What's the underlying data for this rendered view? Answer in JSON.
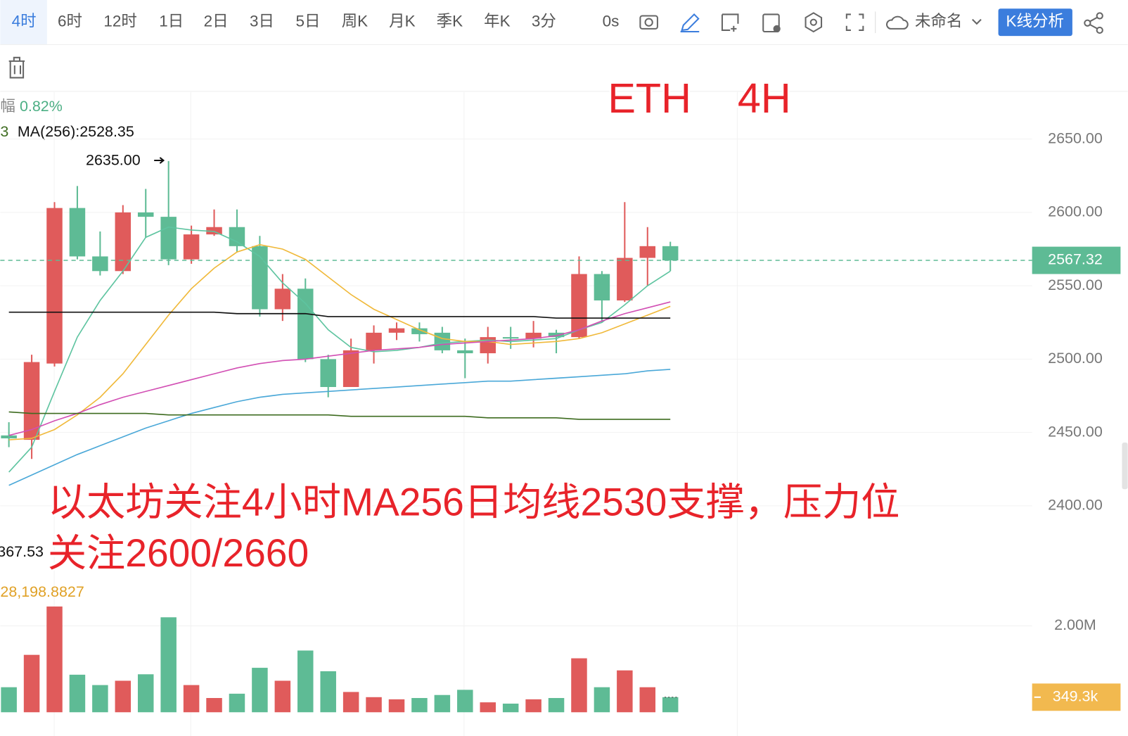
{
  "toolbar": {
    "intervals": [
      "4时",
      "6时",
      "12时",
      "1日",
      "2日",
      "3日",
      "5日",
      "周K",
      "月K",
      "季K",
      "年K",
      "3分"
    ],
    "timer": "0s",
    "project": "未命名",
    "button": "K线分析"
  },
  "chart_data": {
    "type": "candlestick",
    "title": "ETH    4H",
    "annotation_lines": [
      "以太坊关注4小时MA256日均线2530支撑，压力位",
      "关注2600/2660"
    ],
    "legend_change_label": "幅",
    "legend_change": "0.82%",
    "legend_prefix": "3",
    "ma_legend": "MA(256):2528.35",
    "up_color": "#e05b5b",
    "down_color": "#5ebb95",
    "open": [
      2448,
      2445,
      2497,
      2603,
      2570,
      2560,
      2600,
      2597,
      2568,
      2585,
      2590,
      2577,
      2534,
      2548,
      2500,
      2481,
      2506,
      2518,
      2521,
      2518,
      2506,
      2504,
      2515,
      2514,
      2518,
      2515,
      2558,
      2540,
      2569,
      2577
    ],
    "high": [
      2457,
      2503,
      2607,
      2618,
      2587,
      2605,
      2616,
      2635,
      2591,
      2602,
      2602,
      2584,
      2558,
      2555,
      2503,
      2514,
      2523,
      2525,
      2525,
      2522,
      2514,
      2522,
      2522,
      2526,
      2520,
      2570,
      2560,
      2607,
      2590,
      2580
    ],
    "low": [
      2440,
      2432,
      2495,
      2568,
      2557,
      2558,
      2583,
      2564,
      2565,
      2584,
      2573,
      2529,
      2526,
      2498,
      2474,
      2481,
      2497,
      2513,
      2512,
      2504,
      2487,
      2497,
      2507,
      2508,
      2504,
      2514,
      2525,
      2539,
      2550,
      2560
    ],
    "close": [
      2446,
      2498,
      2603,
      2570,
      2560,
      2600,
      2597,
      2568,
      2585,
      2590,
      2577,
      2534,
      2548,
      2500,
      2481,
      2506,
      2518,
      2521,
      2517,
      2506,
      2504,
      2515,
      2514,
      2518,
      2515,
      2558,
      2540,
      2569,
      2577,
      2567.32
    ],
    "high_marker": {
      "value": 2635,
      "label": "2635.00"
    },
    "last_price": {
      "value": 2567.32,
      "label": "2567.32"
    },
    "ylim": [
      2352,
      2682
    ],
    "yticks": [
      {
        "value": 2400,
        "label": "2400.00"
      },
      {
        "value": 2450,
        "label": "2450.00"
      },
      {
        "value": 2500,
        "label": "2500.00"
      },
      {
        "value": 2550,
        "label": "2550.00"
      },
      {
        "value": 2600,
        "label": "2600.00"
      },
      {
        "value": 2650,
        "label": "2650.00"
      }
    ],
    "grid": true,
    "ma_lines": [
      {
        "color": "#5ec4a0",
        "values": [
          2423,
          2440,
          2478,
          2515,
          2540,
          2560,
          2583,
          2590,
          2588,
          2587,
          2580,
          2570,
          2552,
          2538,
          2520,
          2508,
          2505,
          2506,
          2508,
          2511,
          2512,
          2513,
          2512,
          2513,
          2514,
          2520,
          2525,
          2537,
          2550,
          2560
        ]
      },
      {
        "color": "#f0b93a",
        "values": [
          2445,
          2446,
          2452,
          2462,
          2474,
          2490,
          2510,
          2530,
          2548,
          2562,
          2573,
          2578,
          2575,
          2568,
          2556,
          2544,
          2534,
          2527,
          2520,
          2514,
          2512,
          2512,
          2510,
          2511,
          2512,
          2514,
          2518,
          2524,
          2530,
          2536
        ]
      },
      {
        "color": "#d24fb4",
        "values": [
          2448,
          2452,
          2458,
          2463,
          2469,
          2474,
          2478,
          2482,
          2486,
          2490,
          2494,
          2497,
          2499,
          2500,
          2502,
          2504,
          2506,
          2507,
          2508,
          2510,
          2511,
          2512,
          2513,
          2514,
          2516,
          2520,
          2526,
          2531,
          2535,
          2539
        ]
      },
      {
        "color": "#4aa8d8",
        "values": [
          2414,
          2421,
          2428,
          2435,
          2441,
          2447,
          2453,
          2458,
          2463,
          2467,
          2471,
          2474,
          2476,
          2477,
          2478,
          2479,
          2480,
          2481,
          2482,
          2483,
          2484,
          2485,
          2485,
          2486,
          2487,
          2488,
          2489,
          2490,
          2492,
          2493
        ]
      },
      {
        "color": "#3d6b1f",
        "values": [
          2464,
          2463,
          2463,
          2463,
          2463,
          2463,
          2463,
          2462,
          2462,
          2462,
          2462,
          2462,
          2462,
          2462,
          2462,
          2461,
          2461,
          2461,
          2461,
          2461,
          2461,
          2460,
          2460,
          2460,
          2460,
          2459,
          2459,
          2459,
          2459,
          2459
        ]
      },
      {
        "color": "#111111",
        "values": [
          2532,
          2532,
          2532,
          2532,
          2532,
          2532,
          2532,
          2532,
          2532,
          2532,
          2531,
          2531,
          2531,
          2531,
          2529,
          2529,
          2529,
          2529,
          2529,
          2529,
          2529,
          2529,
          2529,
          2529,
          2528,
          2528,
          2528,
          2528,
          2528,
          2528
        ]
      }
    ],
    "volume": {
      "values": [
        580000,
        1330000,
        2450000,
        870000,
        630000,
        730000,
        880000,
        2200000,
        630000,
        330000,
        430000,
        1030000,
        730000,
        1430000,
        950000,
        470000,
        350000,
        300000,
        330000,
        400000,
        520000,
        230000,
        200000,
        300000,
        330000,
        1250000,
        580000,
        970000,
        580000,
        349300
      ],
      "ylim": [
        0,
        2700000
      ],
      "yticks": [
        {
          "value": 2000000,
          "label": "2.00M"
        }
      ],
      "last": {
        "value": 349300,
        "label": "349.3k"
      },
      "legend_values": [
        "367.53",
        "28,198.8827"
      ]
    }
  }
}
